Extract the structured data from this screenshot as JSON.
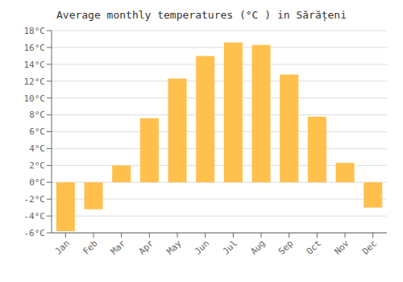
{
  "chart_data": {
    "type": "bar",
    "title": "Average monthly temperatures (°C ) in Sărățeni",
    "categories": [
      "Jan",
      "Feb",
      "Mar",
      "Apr",
      "May",
      "Jun",
      "Jul",
      "Aug",
      "Sep",
      "Oct",
      "Nov",
      "Dec"
    ],
    "values": [
      -5.8,
      -3.2,
      2.0,
      7.6,
      12.3,
      15.0,
      16.6,
      16.3,
      12.8,
      7.8,
      2.3,
      -3.0
    ],
    "color": "#FFC04C",
    "ylim": [
      -6,
      18
    ],
    "yticks": [
      {
        "value": -6,
        "label": "-6°C"
      },
      {
        "value": -4,
        "label": "-4°C"
      },
      {
        "value": -2,
        "label": "-2°C"
      },
      {
        "value": 0,
        "label": "0°C"
      },
      {
        "value": 2,
        "label": "2°C"
      },
      {
        "value": 4,
        "label": "4°C"
      },
      {
        "value": 6,
        "label": "6°C"
      },
      {
        "value": 8,
        "label": "8°C"
      },
      {
        "value": 10,
        "label": "10°C"
      },
      {
        "value": 12,
        "label": "12°C"
      },
      {
        "value": 14,
        "label": "14°C"
      },
      {
        "value": 16,
        "label": "16°C"
      },
      {
        "value": 18,
        "label": "18°C"
      }
    ],
    "grid": true
  }
}
